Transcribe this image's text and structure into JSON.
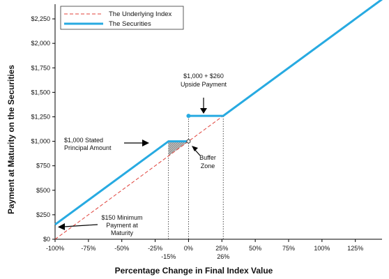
{
  "chart_data": {
    "type": "line",
    "xlabel": "Percentage Change in Final Index Value",
    "ylabel": "Payment at Maturity on the Securities",
    "xlim": [
      -100,
      145
    ],
    "ylim": [
      0,
      2400
    ],
    "x_ticks": [
      -100,
      -75,
      -50,
      -25,
      0,
      25,
      50,
      75,
      100,
      125
    ],
    "x_tick_labels": [
      "-100%",
      "-75%",
      "-50%",
      "-25%",
      "0%",
      "25%",
      "50%",
      "75%",
      "100%",
      "125%"
    ],
    "y_ticks": [
      0,
      250,
      500,
      750,
      1000,
      1250,
      1500,
      1750,
      2000,
      2250
    ],
    "y_tick_labels": [
      "$0",
      "$250",
      "$500",
      "$750",
      "$1,000",
      "$1,250",
      "$1,500",
      "$1,750",
      "$2,000",
      "$2,250"
    ],
    "extra_x_labels": [
      {
        "x": -15,
        "text": "-15%"
      },
      {
        "x": 26,
        "text": "26%"
      }
    ],
    "series": [
      {
        "name": "The Underlying Index",
        "style": "dashed",
        "color": "#e0413a",
        "points": [
          [
            -100,
            0
          ],
          [
            145,
            2450
          ]
        ]
      },
      {
        "name": "The Securities",
        "style": "solid",
        "color": "#27aae1",
        "segments": [
          [
            [
              -100,
              150
            ],
            [
              -15,
              1000
            ],
            [
              0,
              1000
            ]
          ],
          [
            [
              0,
              1260
            ],
            [
              26,
              1260
            ],
            [
              145,
              2450
            ]
          ]
        ]
      }
    ],
    "reference_lines": [
      {
        "x": -15,
        "from": 0,
        "to": 1000
      },
      {
        "x": 0,
        "from": 0,
        "to": 1260
      },
      {
        "x": 26,
        "from": 0,
        "to": 1260
      }
    ],
    "markers": [
      {
        "x": 0,
        "y": 1000,
        "filled": false
      },
      {
        "x": 0,
        "y": 1260,
        "filled": true
      }
    ],
    "shaded_region": {
      "points": [
        [
          -15,
          1000
        ],
        [
          0,
          1000
        ],
        [
          0,
          1000
        ],
        [
          -15,
          850
        ]
      ]
    },
    "annotations": [
      {
        "id": "upside",
        "lines": [
          "$1,000 + $260",
          "Upside Payment"
        ]
      },
      {
        "id": "stated",
        "lines": [
          "$1,000 Stated",
          "Principal Amount"
        ]
      },
      {
        "id": "buffer",
        "lines": [
          "Buffer",
          "Zone"
        ]
      },
      {
        "id": "minimum",
        "lines": [
          "$150 Minimum",
          "Payment at",
          "Maturity"
        ]
      }
    ],
    "legend_position": "top-left"
  }
}
